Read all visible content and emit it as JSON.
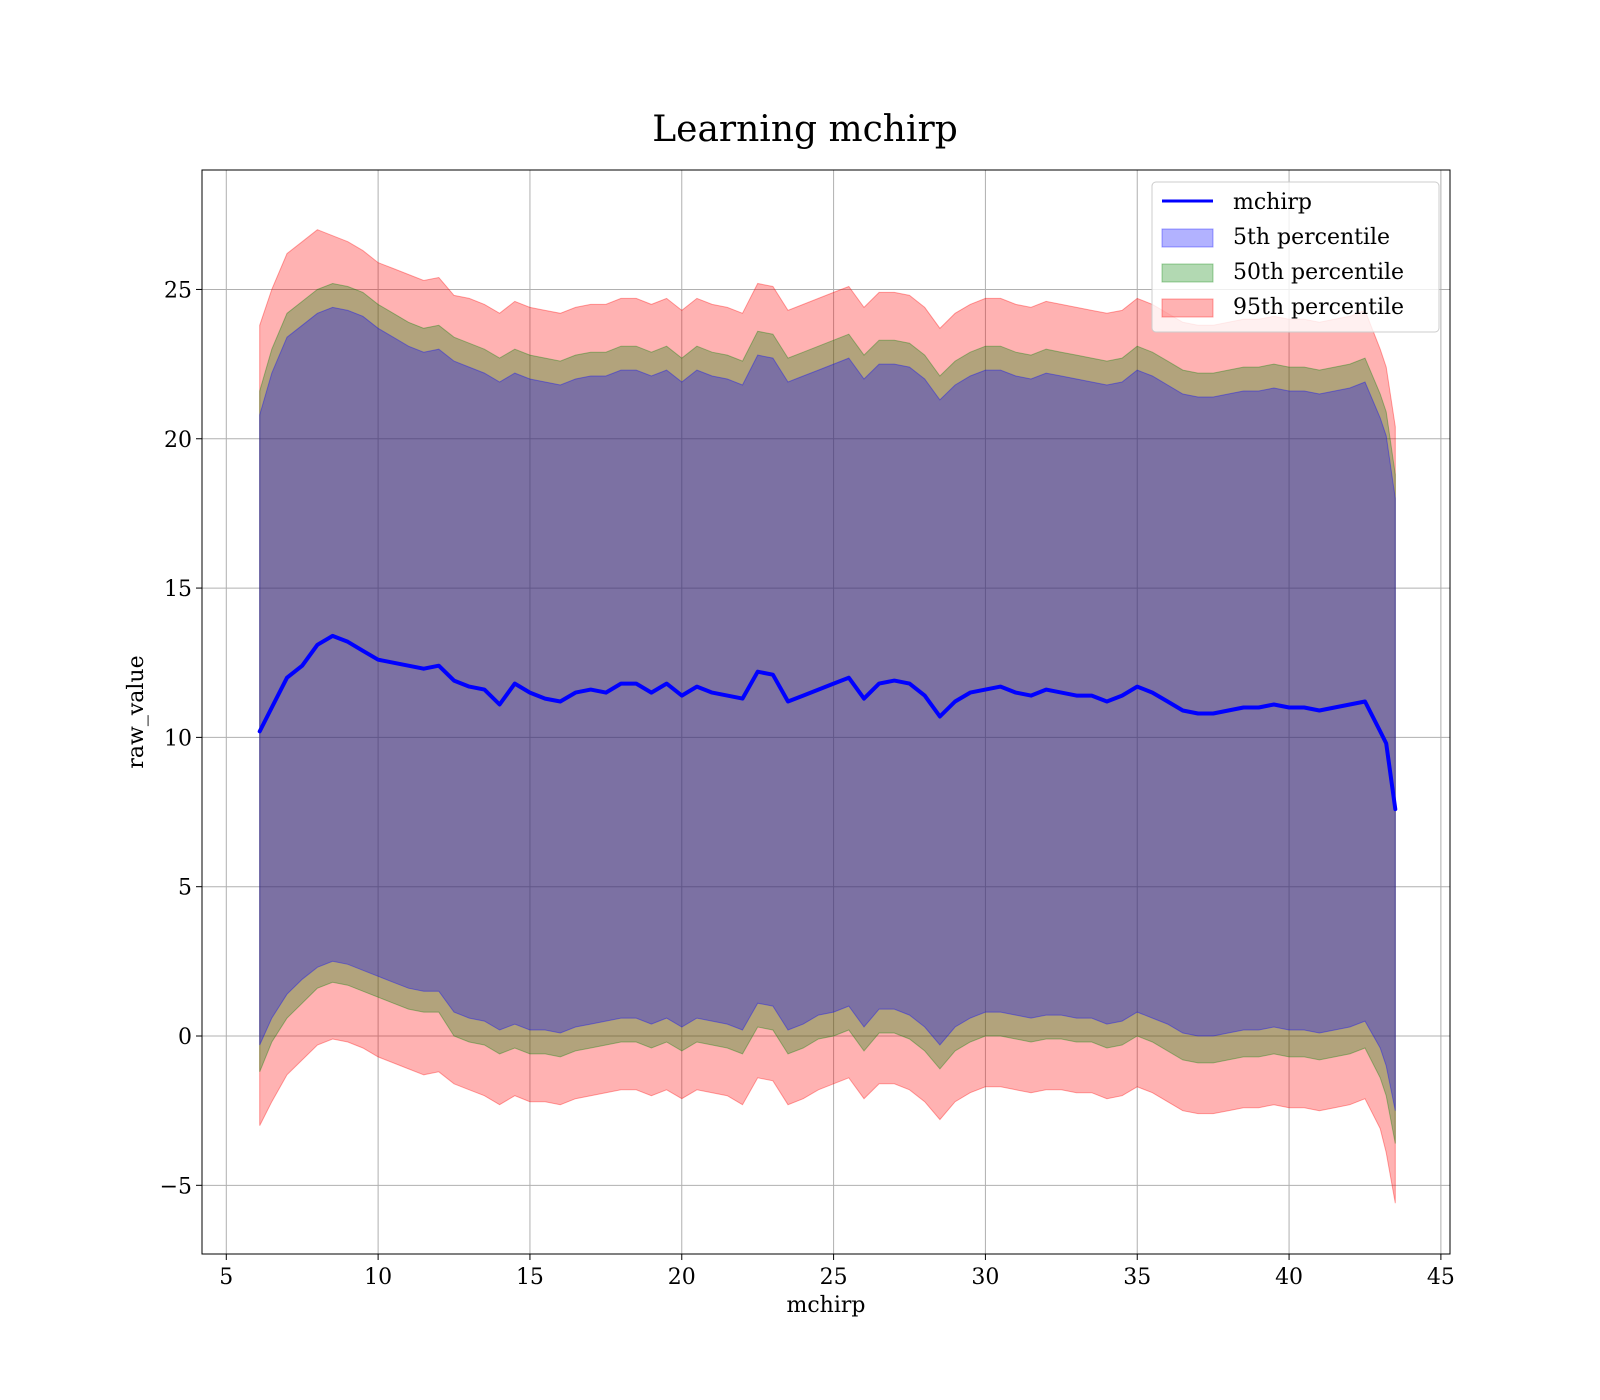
{
  "chart_data": {
    "type": "area",
    "title": "Learning mchirp",
    "xlabel": "mchirp",
    "ylabel": "raw_value",
    "xlim": [
      4.2,
      45.3
    ],
    "ylim": [
      -7.3,
      29.0
    ],
    "grid": true,
    "legend_position": "top-right",
    "x_ticks": [
      5,
      10,
      15,
      20,
      25,
      30,
      35,
      40,
      45
    ],
    "x_tick_labels": [
      "5",
      "10",
      "15",
      "20",
      "25",
      "30",
      "35",
      "40",
      "45"
    ],
    "y_ticks": [
      -5,
      0,
      5,
      10,
      15,
      20,
      25
    ],
    "y_tick_labels": [
      "−5",
      "0",
      "5",
      "10",
      "15",
      "20",
      "25"
    ],
    "x": [
      6.1,
      6.5,
      7.0,
      7.5,
      8.0,
      8.5,
      9.0,
      9.5,
      10.0,
      10.5,
      11.0,
      11.5,
      12.0,
      12.5,
      13.0,
      13.5,
      14.0,
      14.5,
      15.0,
      15.5,
      16.0,
      16.5,
      17.0,
      17.5,
      18.0,
      18.5,
      19.0,
      19.5,
      20.0,
      20.5,
      21.0,
      21.5,
      22.0,
      22.5,
      23.0,
      23.5,
      24.0,
      24.5,
      25.0,
      25.5,
      26.0,
      26.5,
      27.0,
      27.5,
      28.0,
      28.5,
      29.0,
      29.5,
      30.0,
      30.5,
      31.0,
      31.5,
      32.0,
      32.5,
      33.0,
      33.5,
      34.0,
      34.5,
      35.0,
      35.5,
      36.0,
      36.5,
      37.0,
      37.5,
      38.0,
      38.5,
      39.0,
      39.5,
      40.0,
      40.5,
      41.0,
      41.5,
      42.0,
      42.5,
      43.0,
      43.2,
      43.5
    ],
    "series": [
      {
        "name": "mchirp",
        "kind": "line",
        "color": "#0000ff",
        "values": [
          10.2,
          11.0,
          12.0,
          12.4,
          13.1,
          13.4,
          13.2,
          12.9,
          12.6,
          12.5,
          12.4,
          12.3,
          12.4,
          11.9,
          11.7,
          11.6,
          11.1,
          11.8,
          11.5,
          11.3,
          11.2,
          11.5,
          11.6,
          11.5,
          11.8,
          11.8,
          11.5,
          11.8,
          11.4,
          11.7,
          11.5,
          11.4,
          11.3,
          12.2,
          12.1,
          11.2,
          11.4,
          11.6,
          11.8,
          12.0,
          11.3,
          11.8,
          11.9,
          11.8,
          11.4,
          10.7,
          11.2,
          11.5,
          11.6,
          11.7,
          11.5,
          11.4,
          11.6,
          11.5,
          11.4,
          11.4,
          11.2,
          11.4,
          11.7,
          11.5,
          11.2,
          10.9,
          10.8,
          10.8,
          10.9,
          11.0,
          11.0,
          11.1,
          11.0,
          11.0,
          10.9,
          11.0,
          11.1,
          11.2,
          10.2,
          9.8,
          7.6
        ]
      },
      {
        "name": "5th percentile",
        "kind": "band",
        "color": "#0000ff",
        "lower": [
          -0.3,
          0.6,
          1.4,
          1.9,
          2.3,
          2.5,
          2.4,
          2.2,
          2.0,
          1.8,
          1.6,
          1.5,
          1.5,
          0.8,
          0.6,
          0.5,
          0.2,
          0.4,
          0.2,
          0.2,
          0.1,
          0.3,
          0.4,
          0.5,
          0.6,
          0.6,
          0.4,
          0.6,
          0.3,
          0.6,
          0.5,
          0.4,
          0.2,
          1.1,
          1.0,
          0.2,
          0.4,
          0.7,
          0.8,
          1.0,
          0.3,
          0.9,
          0.9,
          0.7,
          0.3,
          -0.3,
          0.3,
          0.6,
          0.8,
          0.8,
          0.7,
          0.6,
          0.7,
          0.7,
          0.6,
          0.6,
          0.4,
          0.5,
          0.8,
          0.6,
          0.4,
          0.1,
          0.0,
          0.0,
          0.1,
          0.2,
          0.2,
          0.3,
          0.2,
          0.2,
          0.1,
          0.2,
          0.3,
          0.5,
          -0.4,
          -1.0,
          -2.5
        ],
        "upper": [
          20.8,
          22.2,
          23.4,
          23.8,
          24.2,
          24.4,
          24.3,
          24.1,
          23.7,
          23.4,
          23.1,
          22.9,
          23.0,
          22.6,
          22.4,
          22.2,
          21.9,
          22.2,
          22.0,
          21.9,
          21.8,
          22.0,
          22.1,
          22.1,
          22.3,
          22.3,
          22.1,
          22.3,
          21.9,
          22.3,
          22.1,
          22.0,
          21.8,
          22.8,
          22.7,
          21.9,
          22.1,
          22.3,
          22.5,
          22.7,
          22.0,
          22.5,
          22.5,
          22.4,
          22.0,
          21.3,
          21.8,
          22.1,
          22.3,
          22.3,
          22.1,
          22.0,
          22.2,
          22.1,
          22.0,
          21.9,
          21.8,
          21.9,
          22.3,
          22.1,
          21.8,
          21.5,
          21.4,
          21.4,
          21.5,
          21.6,
          21.6,
          21.7,
          21.6,
          21.6,
          21.5,
          21.6,
          21.7,
          21.9,
          20.7,
          20.1,
          18.0
        ]
      },
      {
        "name": "50th percentile",
        "kind": "band",
        "color": "#008000",
        "lower": [
          -1.2,
          -0.2,
          0.6,
          1.1,
          1.6,
          1.8,
          1.7,
          1.5,
          1.3,
          1.1,
          0.9,
          0.8,
          0.8,
          0.0,
          -0.2,
          -0.3,
          -0.6,
          -0.4,
          -0.6,
          -0.6,
          -0.7,
          -0.5,
          -0.4,
          -0.3,
          -0.2,
          -0.2,
          -0.4,
          -0.2,
          -0.5,
          -0.2,
          -0.3,
          -0.4,
          -0.6,
          0.3,
          0.2,
          -0.6,
          -0.4,
          -0.1,
          0.0,
          0.2,
          -0.5,
          0.1,
          0.1,
          -0.1,
          -0.5,
          -1.1,
          -0.5,
          -0.2,
          0.0,
          0.0,
          -0.1,
          -0.2,
          -0.1,
          -0.1,
          -0.2,
          -0.2,
          -0.4,
          -0.3,
          0.0,
          -0.2,
          -0.5,
          -0.8,
          -0.9,
          -0.9,
          -0.8,
          -0.7,
          -0.7,
          -0.6,
          -0.7,
          -0.7,
          -0.8,
          -0.7,
          -0.6,
          -0.4,
          -1.4,
          -2.0,
          -3.6
        ],
        "upper": [
          21.6,
          23.0,
          24.2,
          24.6,
          25.0,
          25.2,
          25.1,
          24.9,
          24.5,
          24.2,
          23.9,
          23.7,
          23.8,
          23.4,
          23.2,
          23.0,
          22.7,
          23.0,
          22.8,
          22.7,
          22.6,
          22.8,
          22.9,
          22.9,
          23.1,
          23.1,
          22.9,
          23.1,
          22.7,
          23.1,
          22.9,
          22.8,
          22.6,
          23.6,
          23.5,
          22.7,
          22.9,
          23.1,
          23.3,
          23.5,
          22.8,
          23.3,
          23.3,
          23.2,
          22.8,
          22.1,
          22.6,
          22.9,
          23.1,
          23.1,
          22.9,
          22.8,
          23.0,
          22.9,
          22.8,
          22.7,
          22.6,
          22.7,
          23.1,
          22.9,
          22.6,
          22.3,
          22.2,
          22.2,
          22.3,
          22.4,
          22.4,
          22.5,
          22.4,
          22.4,
          22.3,
          22.4,
          22.5,
          22.7,
          21.5,
          20.9,
          18.8
        ]
      },
      {
        "name": "95th percentile",
        "kind": "band",
        "color": "#ff0000",
        "lower": [
          -3.0,
          -2.2,
          -1.3,
          -0.8,
          -0.3,
          -0.1,
          -0.2,
          -0.4,
          -0.7,
          -0.9,
          -1.1,
          -1.3,
          -1.2,
          -1.6,
          -1.8,
          -2.0,
          -2.3,
          -2.0,
          -2.2,
          -2.2,
          -2.3,
          -2.1,
          -2.0,
          -1.9,
          -1.8,
          -1.8,
          -2.0,
          -1.8,
          -2.1,
          -1.8,
          -1.9,
          -2.0,
          -2.3,
          -1.4,
          -1.5,
          -2.3,
          -2.1,
          -1.8,
          -1.6,
          -1.4,
          -2.1,
          -1.6,
          -1.6,
          -1.8,
          -2.2,
          -2.8,
          -2.2,
          -1.9,
          -1.7,
          -1.7,
          -1.8,
          -1.9,
          -1.8,
          -1.8,
          -1.9,
          -1.9,
          -2.1,
          -2.0,
          -1.7,
          -1.9,
          -2.2,
          -2.5,
          -2.6,
          -2.6,
          -2.5,
          -2.4,
          -2.4,
          -2.3,
          -2.4,
          -2.4,
          -2.5,
          -2.4,
          -2.3,
          -2.1,
          -3.1,
          -3.9,
          -5.6
        ],
        "upper": [
          23.8,
          25.0,
          26.2,
          26.6,
          27.0,
          26.8,
          26.6,
          26.3,
          25.9,
          25.7,
          25.5,
          25.3,
          25.4,
          24.8,
          24.7,
          24.5,
          24.2,
          24.6,
          24.4,
          24.3,
          24.2,
          24.4,
          24.5,
          24.5,
          24.7,
          24.7,
          24.5,
          24.7,
          24.3,
          24.7,
          24.5,
          24.4,
          24.2,
          25.2,
          25.1,
          24.3,
          24.5,
          24.7,
          24.9,
          25.1,
          24.4,
          24.9,
          24.9,
          24.8,
          24.4,
          23.7,
          24.2,
          24.5,
          24.7,
          24.7,
          24.5,
          24.4,
          24.6,
          24.5,
          24.4,
          24.3,
          24.2,
          24.3,
          24.7,
          24.5,
          24.2,
          23.9,
          23.8,
          23.8,
          23.9,
          24.0,
          24.0,
          24.1,
          24.0,
          24.0,
          23.9,
          24.0,
          24.1,
          24.3,
          23.0,
          22.4,
          20.4
        ]
      }
    ]
  }
}
